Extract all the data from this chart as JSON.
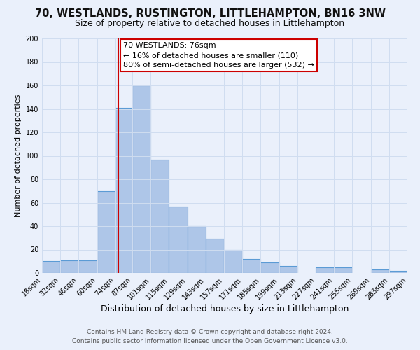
{
  "title": "70, WESTLANDS, RUSTINGTON, LITTLEHAMPTON, BN16 3NW",
  "subtitle": "Size of property relative to detached houses in Littlehampton",
  "xlabel": "Distribution of detached houses by size in Littlehampton",
  "ylabel": "Number of detached properties",
  "bin_edges": [
    18,
    32,
    46,
    60,
    74,
    87,
    101,
    115,
    129,
    143,
    157,
    171,
    185,
    199,
    213,
    227,
    241,
    255,
    269,
    283,
    297
  ],
  "bar_heights": [
    10,
    11,
    11,
    70,
    141,
    160,
    97,
    57,
    40,
    29,
    20,
    12,
    9,
    6,
    0,
    5,
    5,
    0,
    3,
    2
  ],
  "bar_color": "#aec6e8",
  "bar_edge_color": "#5b9bd5",
  "bg_color": "#eaf0fb",
  "grid_color": "#d0ddf0",
  "property_size": 76,
  "red_line_color": "#cc0000",
  "annotation_line1": "70 WESTLANDS: 76sqm",
  "annotation_line2": "← 16% of detached houses are smaller (110)",
  "annotation_line3": "80% of semi-detached houses are larger (532) →",
  "annotation_box_color": "#cc0000",
  "ylim": [
    0,
    200
  ],
  "yticks": [
    0,
    20,
    40,
    60,
    80,
    100,
    120,
    140,
    160,
    180,
    200
  ],
  "footer_line1": "Contains HM Land Registry data © Crown copyright and database right 2024.",
  "footer_line2": "Contains public sector information licensed under the Open Government Licence v3.0.",
  "title_fontsize": 10.5,
  "subtitle_fontsize": 9,
  "xlabel_fontsize": 9,
  "ylabel_fontsize": 8,
  "tick_fontsize": 7,
  "footer_fontsize": 6.5,
  "annotation_fontsize": 8
}
